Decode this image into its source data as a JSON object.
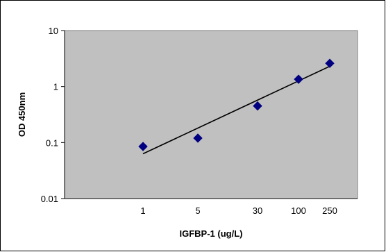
{
  "chart_data": {
    "type": "scatter",
    "title": "",
    "xlabel": "IGFBP-1 (ug/L)",
    "ylabel": "OD 450nm",
    "y_scale": "log",
    "ylim": [
      0.01,
      10
    ],
    "y_ticks": [
      "10",
      "1",
      "0.1",
      "0.01"
    ],
    "x_tick_labels": [
      "1",
      "5",
      "30",
      "100",
      "250"
    ],
    "grid": false,
    "legend": "none",
    "series": [
      {
        "marker": "diamond",
        "x": [
          1,
          5,
          30,
          100,
          250
        ],
        "y": [
          0.085,
          0.12,
          0.45,
          1.35,
          2.6
        ]
      }
    ],
    "trendline": {
      "type": "log-linear",
      "from": {
        "x": 1,
        "y": 0.063
      },
      "to": {
        "x": 250,
        "y": 2.3
      }
    },
    "colors": {
      "plot_background": "#c0c0c0",
      "marker": "#000080",
      "trendline": "#000000"
    }
  }
}
